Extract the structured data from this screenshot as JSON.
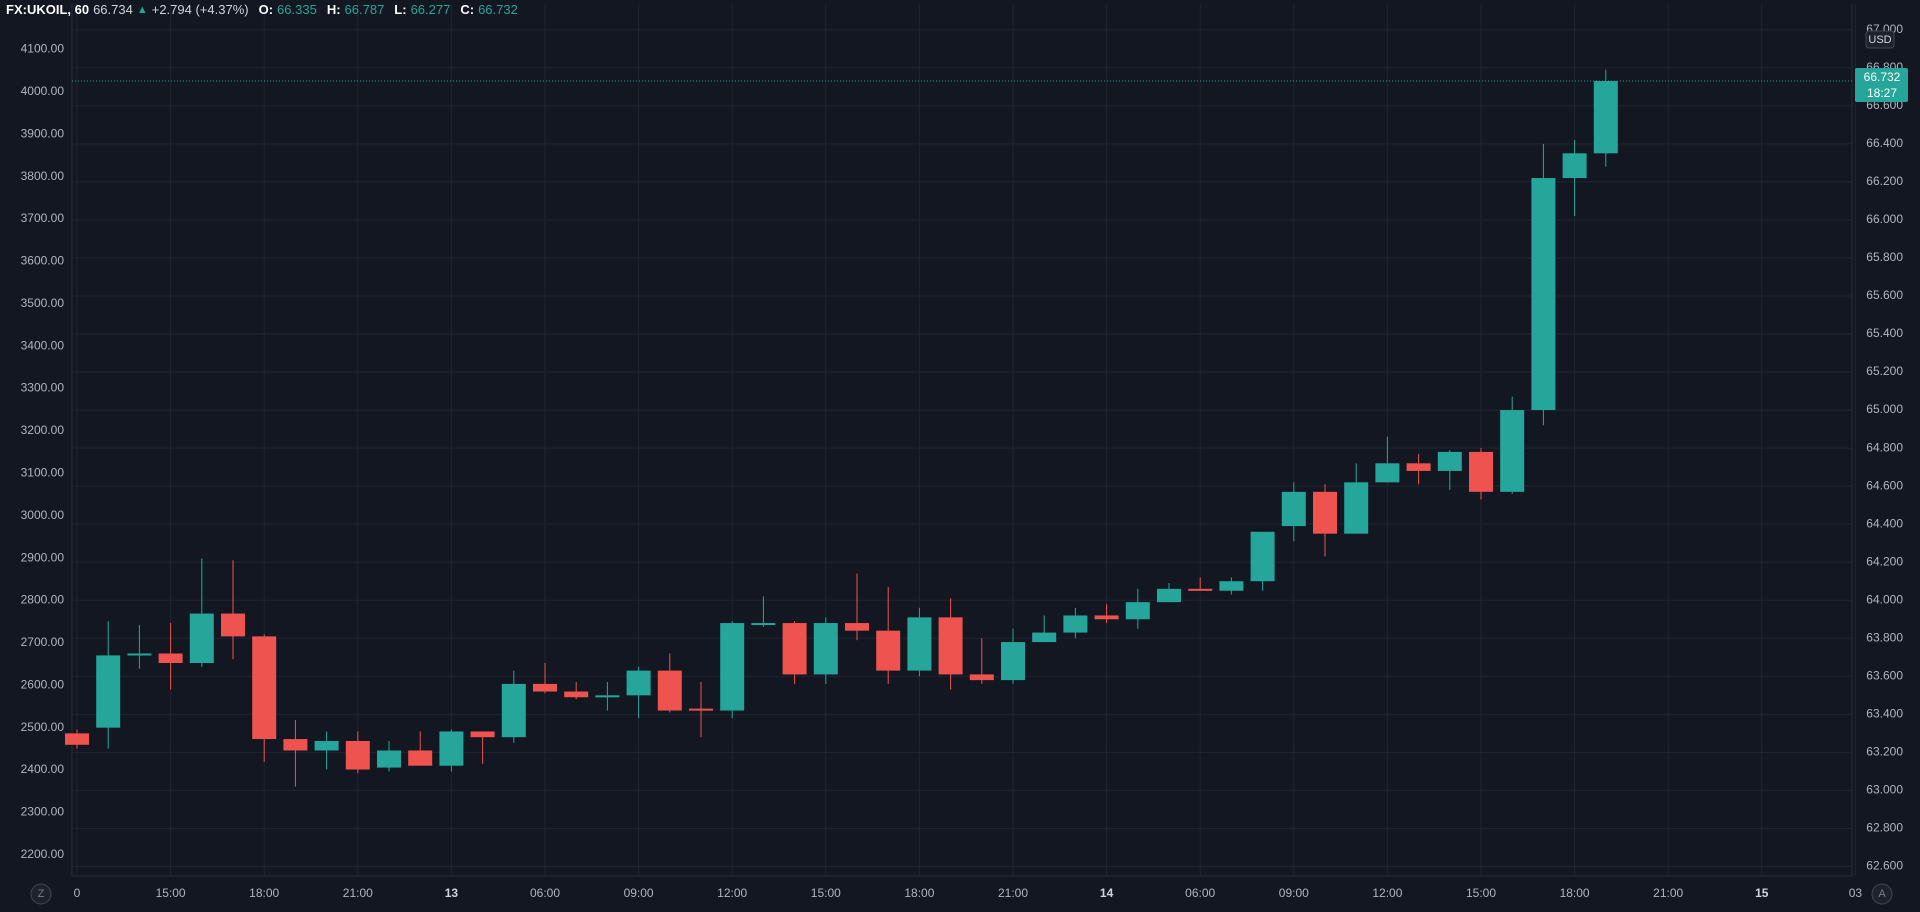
{
  "header": {
    "symbol": "FX:UKOIL, 60",
    "last": "66.734",
    "change_icon": "triangle-up-icon",
    "change": "+2.794 (+4.37%)",
    "open_label": "O:",
    "open": "66.335",
    "high_label": "H:",
    "high": "66.787",
    "low_label": "L:",
    "low": "66.277",
    "close_label": "C:",
    "close": "66.732"
  },
  "colors": {
    "background": "#131722",
    "up": "#26a69a",
    "down": "#ef5350",
    "grid": "#1f2430",
    "text": "#b2b5be"
  },
  "buttons": {
    "left": "Z",
    "right": "A"
  },
  "price_label": {
    "price": "66.732",
    "countdown": "18:27"
  },
  "chart_data": {
    "type": "candlestick",
    "title": "",
    "currency": "USD",
    "grid": true,
    "left_axis": {
      "ticks": [
        "4100.00",
        "4000.00",
        "3900.00",
        "3800.00",
        "3700.00",
        "3600.00",
        "3500.00",
        "3400.00",
        "3300.00",
        "3200.00",
        "3100.00",
        "3000.00",
        "2900.00",
        "2800.00",
        "2700.00",
        "2600.00",
        "2500.00",
        "2400.00",
        "2300.00",
        "2200.00"
      ],
      "range": [
        2150,
        4160
      ]
    },
    "right_axis": {
      "ticks": [
        "67.000",
        "66.800",
        "66.600",
        "66.400",
        "66.200",
        "66.000",
        "65.800",
        "65.600",
        "65.400",
        "65.200",
        "65.000",
        "64.800",
        "64.600",
        "64.400",
        "64.200",
        "64.000",
        "63.800",
        "63.600",
        "63.400",
        "63.200",
        "63.000",
        "62.800",
        "62.600"
      ],
      "range": [
        62.55,
        67.03
      ]
    },
    "x_axis": {
      "labels": [
        {
          "text": "0",
          "bar": 0
        },
        {
          "text": "15:00",
          "bar": 3
        },
        {
          "text": "18:00",
          "bar": 6
        },
        {
          "text": "21:00",
          "bar": 9
        },
        {
          "text": "13",
          "bar": 12,
          "bold": true
        },
        {
          "text": "06:00",
          "bar": 15
        },
        {
          "text": "09:00",
          "bar": 18
        },
        {
          "text": "12:00",
          "bar": 21
        },
        {
          "text": "15:00",
          "bar": 24
        },
        {
          "text": "18:00",
          "bar": 27
        },
        {
          "text": "21:00",
          "bar": 30
        },
        {
          "text": "14",
          "bar": 33,
          "bold": true
        },
        {
          "text": "06:00",
          "bar": 36
        },
        {
          "text": "09:00",
          "bar": 39
        },
        {
          "text": "12:00",
          "bar": 42
        },
        {
          "text": "15:00",
          "bar": 45
        },
        {
          "text": "18:00",
          "bar": 48
        },
        {
          "text": "21:00",
          "bar": 51
        },
        {
          "text": "15",
          "bar": 54,
          "bold": true
        },
        {
          "text": "03",
          "bar": 57
        }
      ]
    },
    "candles": [
      {
        "o": 63.3,
        "h": 63.32,
        "l": 63.22,
        "c": 63.24
      },
      {
        "o": 63.33,
        "h": 63.89,
        "l": 63.22,
        "c": 63.71
      },
      {
        "o": 63.71,
        "h": 63.87,
        "l": 63.64,
        "c": 63.72
      },
      {
        "o": 63.72,
        "h": 63.88,
        "l": 63.53,
        "c": 63.67
      },
      {
        "o": 63.67,
        "h": 64.22,
        "l": 63.65,
        "c": 63.93
      },
      {
        "o": 63.93,
        "h": 64.21,
        "l": 63.69,
        "c": 63.81
      },
      {
        "o": 63.81,
        "h": 63.82,
        "l": 63.15,
        "c": 63.27
      },
      {
        "o": 63.27,
        "h": 63.37,
        "l": 63.02,
        "c": 63.21
      },
      {
        "o": 63.21,
        "h": 63.31,
        "l": 63.11,
        "c": 63.26
      },
      {
        "o": 63.26,
        "h": 63.31,
        "l": 63.09,
        "c": 63.11
      },
      {
        "o": 63.12,
        "h": 63.26,
        "l": 63.1,
        "c": 63.21
      },
      {
        "o": 63.21,
        "h": 63.31,
        "l": 63.14,
        "c": 63.13
      },
      {
        "o": 63.13,
        "h": 63.32,
        "l": 63.1,
        "c": 63.31
      },
      {
        "o": 63.31,
        "h": 63.3,
        "l": 63.14,
        "c": 63.28
      },
      {
        "o": 63.28,
        "h": 63.63,
        "l": 63.25,
        "c": 63.56
      },
      {
        "o": 63.56,
        "h": 63.67,
        "l": 63.51,
        "c": 63.52
      },
      {
        "o": 63.52,
        "h": 63.57,
        "l": 63.48,
        "c": 63.49
      },
      {
        "o": 63.49,
        "h": 63.57,
        "l": 63.42,
        "c": 63.5
      },
      {
        "o": 63.5,
        "h": 63.65,
        "l": 63.38,
        "c": 63.63
      },
      {
        "o": 63.63,
        "h": 63.72,
        "l": 63.41,
        "c": 63.42
      },
      {
        "o": 63.43,
        "h": 63.57,
        "l": 63.28,
        "c": 63.42
      },
      {
        "o": 63.42,
        "h": 63.89,
        "l": 63.38,
        "c": 63.88
      },
      {
        "o": 63.87,
        "h": 64.02,
        "l": 63.86,
        "c": 63.88
      },
      {
        "o": 63.88,
        "h": 63.89,
        "l": 63.56,
        "c": 63.61
      },
      {
        "o": 63.61,
        "h": 63.91,
        "l": 63.56,
        "c": 63.88
      },
      {
        "o": 63.88,
        "h": 64.14,
        "l": 63.79,
        "c": 63.84
      },
      {
        "o": 63.84,
        "h": 64.07,
        "l": 63.56,
        "c": 63.63
      },
      {
        "o": 63.63,
        "h": 63.96,
        "l": 63.6,
        "c": 63.91
      },
      {
        "o": 63.91,
        "h": 64.01,
        "l": 63.53,
        "c": 63.61
      },
      {
        "o": 63.61,
        "h": 63.8,
        "l": 63.56,
        "c": 63.58
      },
      {
        "o": 63.58,
        "h": 63.85,
        "l": 63.56,
        "c": 63.78
      },
      {
        "o": 63.78,
        "h": 63.92,
        "l": 63.78,
        "c": 63.83
      },
      {
        "o": 63.83,
        "h": 63.96,
        "l": 63.8,
        "c": 63.92
      },
      {
        "o": 63.92,
        "h": 63.98,
        "l": 63.88,
        "c": 63.9
      },
      {
        "o": 63.9,
        "h": 64.06,
        "l": 63.85,
        "c": 63.99
      },
      {
        "o": 63.99,
        "h": 64.09,
        "l": 63.99,
        "c": 64.06
      },
      {
        "o": 64.06,
        "h": 64.12,
        "l": 64.05,
        "c": 64.05
      },
      {
        "o": 64.05,
        "h": 64.12,
        "l": 64.03,
        "c": 64.1
      },
      {
        "o": 64.1,
        "h": 64.36,
        "l": 64.05,
        "c": 64.36
      },
      {
        "o": 64.39,
        "h": 64.62,
        "l": 64.31,
        "c": 64.57
      },
      {
        "o": 64.57,
        "h": 64.61,
        "l": 64.23,
        "c": 64.35
      },
      {
        "o": 64.35,
        "h": 64.72,
        "l": 64.36,
        "c": 64.62
      },
      {
        "o": 64.62,
        "h": 64.86,
        "l": 64.62,
        "c": 64.72
      },
      {
        "o": 64.72,
        "h": 64.77,
        "l": 64.61,
        "c": 64.68
      },
      {
        "o": 64.68,
        "h": 64.79,
        "l": 64.58,
        "c": 64.78
      },
      {
        "o": 64.78,
        "h": 64.8,
        "l": 64.53,
        "c": 64.57
      },
      {
        "o": 64.57,
        "h": 65.07,
        "l": 64.56,
        "c": 65.0
      },
      {
        "o": 65.0,
        "h": 66.4,
        "l": 64.92,
        "c": 66.22
      },
      {
        "o": 66.22,
        "h": 66.42,
        "l": 66.02,
        "c": 66.35
      },
      {
        "o": 66.35,
        "h": 66.79,
        "l": 66.28,
        "c": 66.73
      }
    ]
  }
}
